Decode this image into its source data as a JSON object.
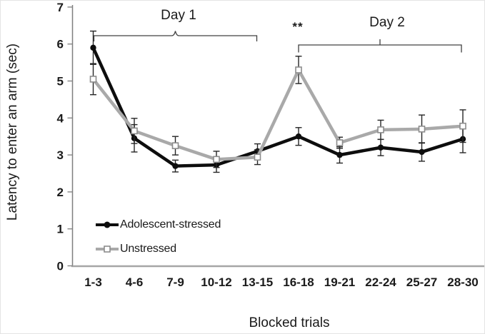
{
  "chart_data": {
    "type": "line",
    "title": "",
    "xlabel": "Blocked trials",
    "ylabel": "Latency to enter an arm (sec)",
    "ylim": [
      0,
      7
    ],
    "yticks": [
      0,
      1,
      2,
      3,
      4,
      5,
      6,
      7
    ],
    "grid": false,
    "legend_position": "inside-bottom-left",
    "categories": [
      "1-3",
      "4-6",
      "7-9",
      "10-12",
      "13-15",
      "16-18",
      "19-21",
      "22-24",
      "25-27",
      "28-30"
    ],
    "series": [
      {
        "name": "Adolescent-stressed",
        "color": "#0d0d0d",
        "marker": "circle",
        "marker_fill": "#0d0d0d",
        "marker_stroke": "#0d0d0d",
        "values": [
          5.9,
          3.45,
          2.7,
          2.73,
          3.1,
          3.5,
          3.0,
          3.2,
          3.08,
          3.43
        ],
        "errors": [
          0.45,
          0.37,
          0.16,
          0.2,
          0.2,
          0.24,
          0.22,
          0.22,
          0.25,
          0.37
        ]
      },
      {
        "name": "Unstressed",
        "color": "#a9a9a9",
        "marker": "square",
        "marker_fill": "#ffffff",
        "marker_stroke": "#8c8c8c",
        "values": [
          5.05,
          3.65,
          3.25,
          2.88,
          2.94,
          5.3,
          3.33,
          3.68,
          3.7,
          3.78
        ],
        "errors": [
          0.42,
          0.34,
          0.25,
          0.22,
          0.2,
          0.37,
          0.15,
          0.26,
          0.38,
          0.44
        ]
      }
    ],
    "annotations": {
      "day1": {
        "label": "Day 1",
        "from_index": 0,
        "to_index": 4
      },
      "day2": {
        "label": "Day 2",
        "from_index": 5,
        "to_index": 9
      },
      "significance": {
        "label": "**",
        "index": 5
      }
    },
    "colors": {
      "axis_x": "#a6a6a6",
      "axis_y": "#7f7f7f",
      "error_bar": "#262626",
      "bracket": "#404040",
      "text": "#1a1a1a"
    }
  }
}
